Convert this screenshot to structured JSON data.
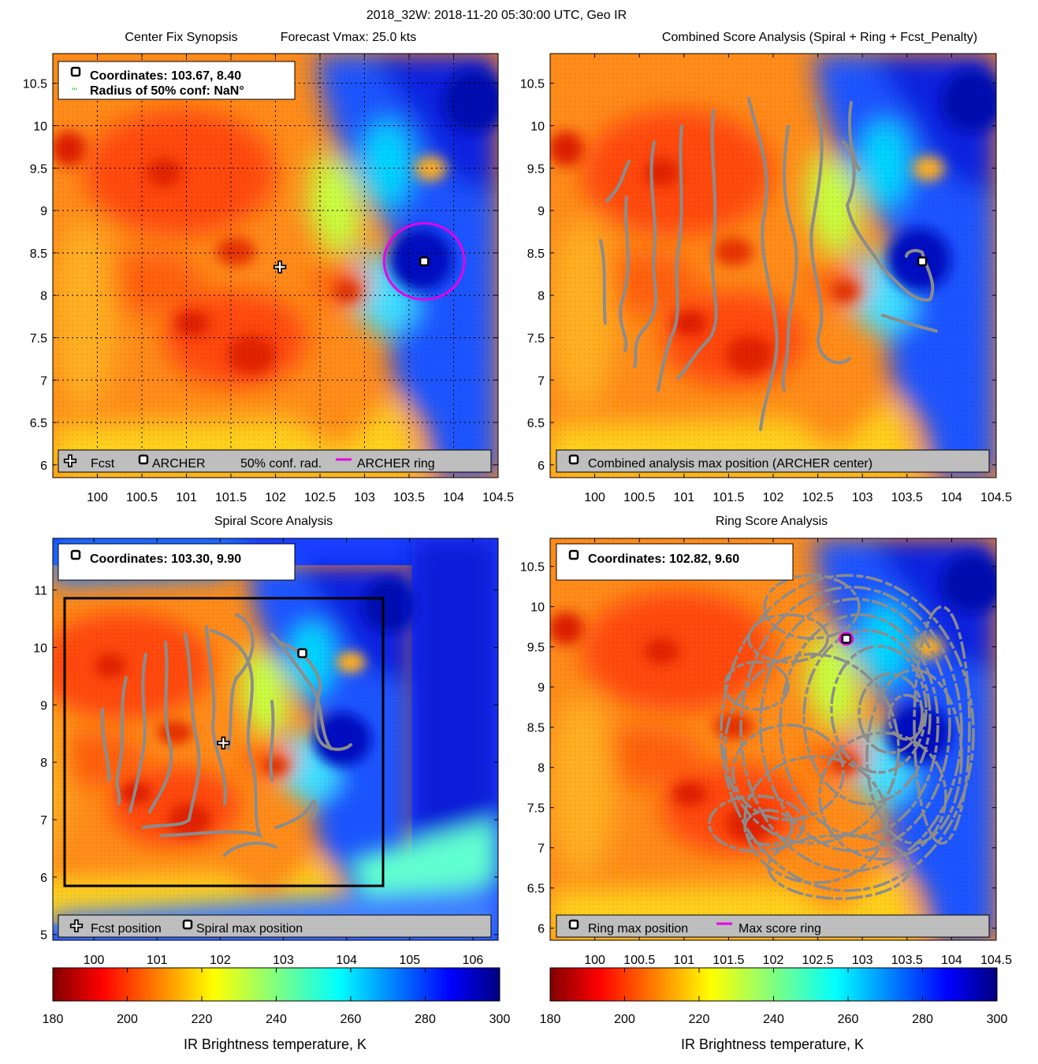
{
  "figure_title": "2018_32W: 2018-11-20 05:30:00 UTC, Geo IR",
  "colorbar": {
    "label": "IR Brightness temperature, K",
    "ticks": [
      "180",
      "200",
      "220",
      "240",
      "260",
      "280",
      "300"
    ],
    "min": 180,
    "max": 300
  },
  "chart_data": [
    {
      "type": "heatmap",
      "title_left": "Center Fix Synopsis",
      "title_right": "Forecast Vmax: 25.0 kts",
      "xlim": [
        99.5,
        104.5
      ],
      "ylim": [
        5.85,
        10.85
      ],
      "xticks": [
        "100",
        "100.5",
        "101",
        "101.5",
        "102",
        "102.5",
        "103",
        "103.5",
        "104",
        "104.5"
      ],
      "yticks": [
        "6",
        "6.5",
        "7",
        "7.5",
        "8",
        "8.5",
        "9",
        "9.5",
        "10",
        "10.5"
      ],
      "grid": true,
      "info_lines": [
        "Coordinates: 103.67, 8.40",
        "Radius of 50% conf: NaN°"
      ],
      "legend": [
        "Fcst",
        "ARCHER",
        "50% conf. rad.",
        "ARCHER ring"
      ],
      "points": [
        {
          "name": "Fcst",
          "x": 102.05,
          "y": 8.33,
          "marker": "plus"
        },
        {
          "name": "ARCHER",
          "x": 103.67,
          "y": 8.4,
          "marker": "square"
        }
      ],
      "ring": {
        "x": 103.67,
        "y": 8.4,
        "radius": 0.45,
        "color": "#e600e6"
      }
    },
    {
      "type": "heatmap",
      "title": "Combined Score Analysis (Spiral + Ring + Fcst_Penalty)",
      "xlim": [
        99.5,
        104.5
      ],
      "ylim": [
        5.85,
        10.85
      ],
      "xticks": [
        "100",
        "100.5",
        "101",
        "101.5",
        "102",
        "102.5",
        "103",
        "103.5",
        "104",
        "104.5"
      ],
      "yticks": [
        "6",
        "6.5",
        "7",
        "7.5",
        "8",
        "8.5",
        "9",
        "9.5",
        "10",
        "10.5"
      ],
      "grid": false,
      "legend": [
        "Combined analysis max position (ARCHER center)"
      ],
      "points": [
        {
          "name": "Combined max",
          "x": 103.67,
          "y": 8.4,
          "marker": "square"
        }
      ]
    },
    {
      "type": "heatmap",
      "title": "Spiral Score Analysis",
      "xlim": [
        99.35,
        106.4
      ],
      "ylim": [
        4.9,
        11.9
      ],
      "xticks": [
        "100",
        "101",
        "102",
        "103",
        "104",
        "105",
        "106"
      ],
      "yticks": [
        "5",
        "6",
        "7",
        "8",
        "9",
        "10",
        "11"
      ],
      "grid": false,
      "info_lines": [
        "Coordinates: 103.30, 9.90"
      ],
      "legend": [
        "Fcst position",
        "Spiral max position"
      ],
      "points": [
        {
          "name": "Fcst position",
          "x": 102.05,
          "y": 8.33,
          "marker": "plus"
        },
        {
          "name": "Spiral max position",
          "x": 103.3,
          "y": 9.9,
          "marker": "square"
        }
      ],
      "box": {
        "x0": 99.55,
        "x1": 104.6,
        "y0": 5.85,
        "y1": 10.85
      }
    },
    {
      "type": "heatmap",
      "title": "Ring Score Analysis",
      "xlim": [
        99.5,
        104.5
      ],
      "ylim": [
        5.85,
        10.85
      ],
      "xticks": [
        "100",
        "100.5",
        "101",
        "101.5",
        "102",
        "102.5",
        "103",
        "103.5",
        "104",
        "104.5"
      ],
      "yticks": [
        "6",
        "6.5",
        "7",
        "7.5",
        "8",
        "8.5",
        "9",
        "9.5",
        "10",
        "10.5"
      ],
      "grid": false,
      "info_lines": [
        "Coordinates: 102.82, 9.60"
      ],
      "legend": [
        "Ring max position",
        "Max score ring"
      ],
      "points": [
        {
          "name": "Ring max position",
          "x": 102.82,
          "y": 9.6,
          "marker": "square"
        }
      ],
      "ring": {
        "x": 102.82,
        "y": 9.6,
        "radius": 0.07,
        "color": "#e600e6"
      }
    }
  ]
}
